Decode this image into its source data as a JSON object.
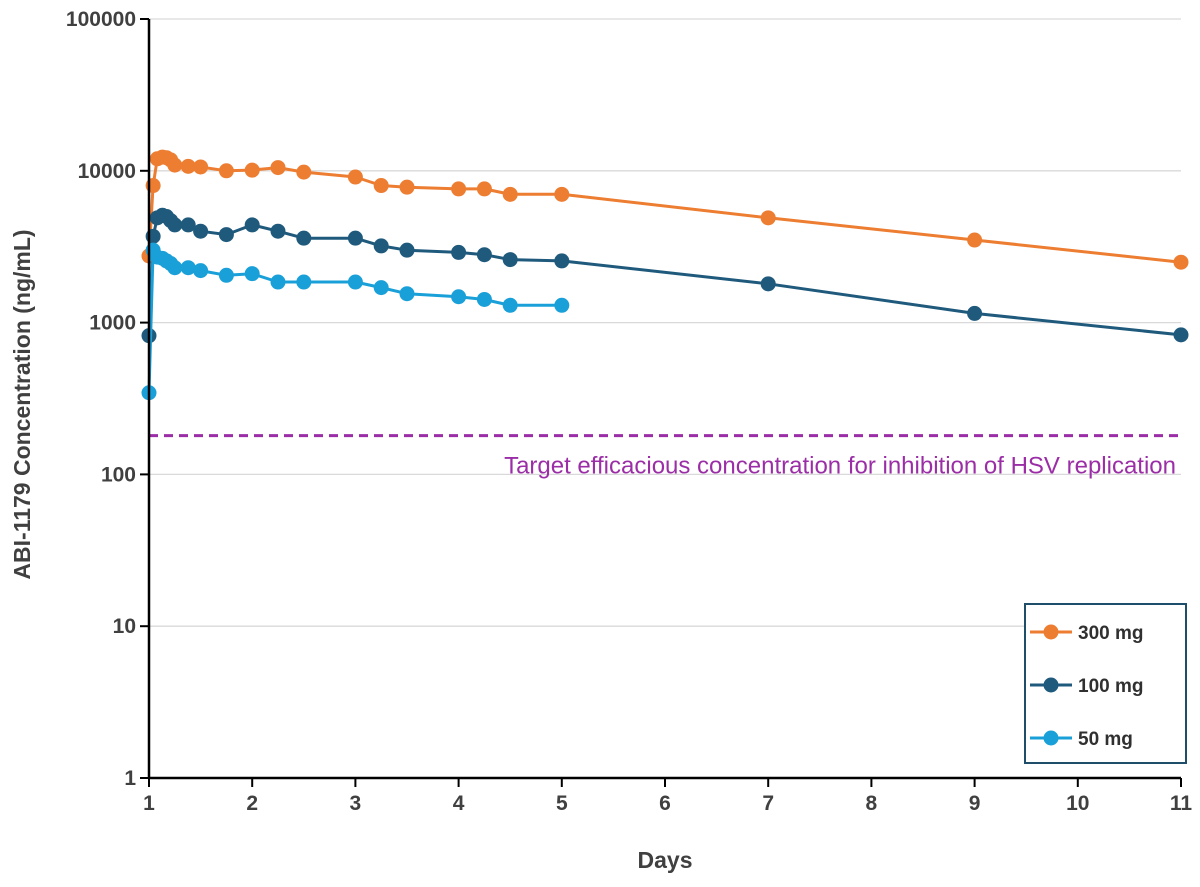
{
  "chart_data": {
    "type": "line",
    "yscale": "log",
    "title": "",
    "xlabel": "Days",
    "ylabel": "ABI-1179 Concentration (ng/mL)",
    "xlim": [
      1,
      11
    ],
    "ylim": [
      1,
      100000
    ],
    "x_ticks": [
      "1",
      "2",
      "3",
      "4",
      "5",
      "6",
      "7",
      "8",
      "9",
      "10",
      "11"
    ],
    "y_ticks": [
      "1",
      "10",
      "100",
      "1000",
      "10000",
      "100000"
    ],
    "grid": "horizontal",
    "legend_position": "bottom-right",
    "series": [
      {
        "name": "300 mg",
        "color": "#ed7d31",
        "x": [
          1.0,
          1.04,
          1.08,
          1.13,
          1.17,
          1.21,
          1.25,
          1.38,
          1.5,
          1.75,
          2.0,
          2.25,
          2.5,
          3.0,
          3.25,
          3.5,
          4.0,
          4.25,
          4.5,
          5.0,
          7.0,
          9.0,
          11.0
        ],
        "y": [
          2750,
          8000,
          12000,
          12300,
          12200,
          11800,
          10900,
          10700,
          10600,
          10000,
          10100,
          10500,
          9800,
          9100,
          8000,
          7800,
          7600,
          7600,
          7000,
          7000,
          4900,
          3500,
          2500
        ]
      },
      {
        "name": "100 mg",
        "color": "#1f5a7d",
        "x": [
          1.0,
          1.04,
          1.08,
          1.13,
          1.17,
          1.21,
          1.25,
          1.38,
          1.5,
          1.75,
          2.0,
          2.25,
          2.5,
          3.0,
          3.25,
          3.5,
          4.0,
          4.25,
          4.5,
          5.0,
          7.0,
          9.0,
          11.0
        ],
        "y": [
          820,
          3700,
          4900,
          5100,
          5000,
          4700,
          4400,
          4400,
          4000,
          3800,
          4400,
          4000,
          3600,
          3600,
          3200,
          3000,
          2900,
          2800,
          2600,
          2550,
          1800,
          1150,
          830
        ]
      },
      {
        "name": "50 mg",
        "color": "#1aa0d8",
        "x": [
          1.0,
          1.04,
          1.08,
          1.13,
          1.17,
          1.21,
          1.25,
          1.38,
          1.5,
          1.75,
          2.0,
          2.25,
          2.5,
          3.0,
          3.25,
          3.5,
          4.0,
          4.25,
          4.5,
          5.0
        ],
        "y": [
          345,
          3000,
          2700,
          2650,
          2550,
          2450,
          2300,
          2300,
          2200,
          2050,
          2100,
          1850,
          1850,
          1850,
          1700,
          1550,
          1480,
          1420,
          1300,
          1300
        ]
      }
    ],
    "reference_line": {
      "y": 180,
      "color": "#9b2ea7",
      "style": "dashed",
      "label": "Target efficacious concentration for inhibition of HSV replication"
    }
  }
}
